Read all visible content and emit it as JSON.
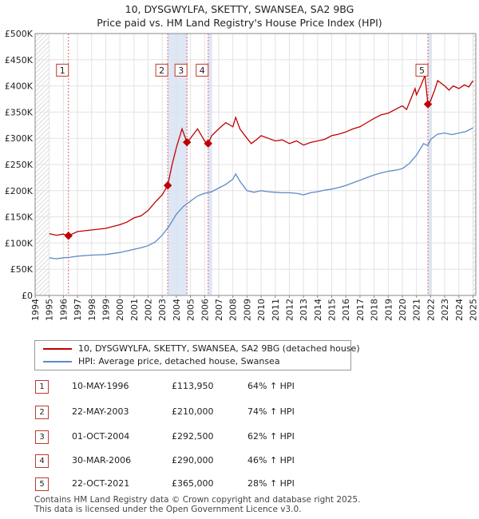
{
  "header": {
    "title_line1": "10, DYSGWYLFA, SKETTY, SWANSEA, SA2 9BG",
    "title_line2": "Price paid vs. HM Land Registry's House Price Index (HPI)"
  },
  "colors": {
    "red": "#c00000",
    "blue": "#5b8ac6",
    "highlight": "#dde7f5",
    "marker_border": "#c0392b"
  },
  "chart_data": {
    "type": "line",
    "ylim": [
      0,
      500000
    ],
    "xlim": [
      1994.0,
      2025.2
    ],
    "y_ticks": [
      0,
      50000,
      100000,
      150000,
      200000,
      250000,
      300000,
      350000,
      400000,
      450000,
      500000
    ],
    "y_tick_labels": [
      "£0",
      "£50K",
      "£100K",
      "£150K",
      "£200K",
      "£250K",
      "£300K",
      "£350K",
      "£400K",
      "£450K",
      "£500K"
    ],
    "x_ticks": [
      1994,
      1995,
      1996,
      1997,
      1998,
      1999,
      2000,
      2001,
      2002,
      2003,
      2004,
      2005,
      2006,
      2007,
      2008,
      2009,
      2010,
      2011,
      2012,
      2013,
      2014,
      2015,
      2016,
      2017,
      2018,
      2019,
      2020,
      2021,
      2022,
      2023,
      2024,
      2025
    ],
    "x_tick_labels": [
      "1994",
      "1995",
      "1996",
      "1997",
      "1998",
      "1999",
      "2000",
      "2001",
      "2002",
      "2003",
      "2004",
      "2005",
      "2006",
      "2007",
      "2008",
      "2009",
      "2010",
      "2011",
      "2012",
      "2013",
      "2014",
      "2015",
      "2016",
      "2017",
      "2018",
      "2019",
      "2020",
      "2021",
      "2022",
      "2023",
      "2024",
      "2025"
    ],
    "hatched_ranges": [
      [
        1994.0,
        1995.0
      ],
      [
        2025.0,
        2025.2
      ]
    ],
    "series": [
      {
        "name": "10, DYSGWYLFA, SKETTY, SWANSEA, SA2 9BG (detached house)",
        "color": "#c00000",
        "points": [
          [
            1995.0,
            118000
          ],
          [
            1995.5,
            115000
          ],
          [
            1996.0,
            117000
          ],
          [
            1996.36,
            113950
          ],
          [
            1997.0,
            122000
          ],
          [
            1998.0,
            125000
          ],
          [
            1999.0,
            128000
          ],
          [
            2000.0,
            135000
          ],
          [
            2000.5,
            140000
          ],
          [
            2001.0,
            148000
          ],
          [
            2001.5,
            152000
          ],
          [
            2002.0,
            162000
          ],
          [
            2002.5,
            178000
          ],
          [
            2003.0,
            192000
          ],
          [
            2003.39,
            210000
          ],
          [
            2003.7,
            250000
          ],
          [
            2004.0,
            282000
          ],
          [
            2004.4,
            318000
          ],
          [
            2004.75,
            292500
          ],
          [
            2005.0,
            300000
          ],
          [
            2005.5,
            318000
          ],
          [
            2006.0,
            295000
          ],
          [
            2006.25,
            290000
          ],
          [
            2006.5,
            305000
          ],
          [
            2007.0,
            318000
          ],
          [
            2007.5,
            330000
          ],
          [
            2008.0,
            322000
          ],
          [
            2008.2,
            340000
          ],
          [
            2008.5,
            318000
          ],
          [
            2009.0,
            300000
          ],
          [
            2009.3,
            290000
          ],
          [
            2009.7,
            298000
          ],
          [
            2010.0,
            305000
          ],
          [
            2010.5,
            300000
          ],
          [
            2011.0,
            295000
          ],
          [
            2011.5,
            297000
          ],
          [
            2012.0,
            290000
          ],
          [
            2012.5,
            295000
          ],
          [
            2013.0,
            287000
          ],
          [
            2013.5,
            292000
          ],
          [
            2014.0,
            295000
          ],
          [
            2014.5,
            298000
          ],
          [
            2015.0,
            305000
          ],
          [
            2015.5,
            308000
          ],
          [
            2016.0,
            312000
          ],
          [
            2016.5,
            318000
          ],
          [
            2017.0,
            322000
          ],
          [
            2017.5,
            330000
          ],
          [
            2018.0,
            338000
          ],
          [
            2018.5,
            345000
          ],
          [
            2019.0,
            348000
          ],
          [
            2019.5,
            355000
          ],
          [
            2020.0,
            362000
          ],
          [
            2020.3,
            355000
          ],
          [
            2020.6,
            375000
          ],
          [
            2020.9,
            395000
          ],
          [
            2021.0,
            383000
          ],
          [
            2021.3,
            400000
          ],
          [
            2021.6,
            420000
          ],
          [
            2021.81,
            365000
          ],
          [
            2022.0,
            372000
          ],
          [
            2022.3,
            393000
          ],
          [
            2022.5,
            410000
          ],
          [
            2023.0,
            400000
          ],
          [
            2023.3,
            392000
          ],
          [
            2023.6,
            400000
          ],
          [
            2024.0,
            395000
          ],
          [
            2024.4,
            402000
          ],
          [
            2024.7,
            398000
          ],
          [
            2025.0,
            410000
          ]
        ]
      },
      {
        "name": "HPI: Average price, detached house, Swansea",
        "color": "#5b8ac6",
        "points": [
          [
            1995.0,
            72000
          ],
          [
            1995.5,
            70000
          ],
          [
            1996.0,
            72000
          ],
          [
            1996.5,
            73000
          ],
          [
            1997.0,
            75000
          ],
          [
            1998.0,
            77000
          ],
          [
            1999.0,
            78000
          ],
          [
            2000.0,
            82000
          ],
          [
            2000.5,
            85000
          ],
          [
            2001.0,
            88000
          ],
          [
            2001.5,
            91000
          ],
          [
            2002.0,
            95000
          ],
          [
            2002.5,
            102000
          ],
          [
            2003.0,
            115000
          ],
          [
            2003.5,
            133000
          ],
          [
            2004.0,
            155000
          ],
          [
            2004.5,
            170000
          ],
          [
            2005.0,
            180000
          ],
          [
            2005.5,
            190000
          ],
          [
            2006.0,
            195000
          ],
          [
            2006.5,
            198000
          ],
          [
            2007.0,
            205000
          ],
          [
            2007.5,
            212000
          ],
          [
            2008.0,
            222000
          ],
          [
            2008.2,
            232000
          ],
          [
            2008.5,
            218000
          ],
          [
            2009.0,
            200000
          ],
          [
            2009.5,
            197000
          ],
          [
            2010.0,
            200000
          ],
          [
            2010.5,
            198000
          ],
          [
            2011.0,
            197000
          ],
          [
            2011.5,
            196000
          ],
          [
            2012.0,
            196000
          ],
          [
            2012.5,
            195000
          ],
          [
            2013.0,
            192000
          ],
          [
            2013.5,
            196000
          ],
          [
            2014.0,
            198000
          ],
          [
            2014.5,
            201000
          ],
          [
            2015.0,
            203000
          ],
          [
            2015.5,
            206000
          ],
          [
            2016.0,
            210000
          ],
          [
            2016.5,
            215000
          ],
          [
            2017.0,
            220000
          ],
          [
            2017.5,
            225000
          ],
          [
            2018.0,
            230000
          ],
          [
            2018.5,
            234000
          ],
          [
            2019.0,
            237000
          ],
          [
            2019.5,
            239000
          ],
          [
            2020.0,
            242000
          ],
          [
            2020.5,
            252000
          ],
          [
            2021.0,
            268000
          ],
          [
            2021.5,
            290000
          ],
          [
            2021.81,
            286000
          ],
          [
            2022.0,
            298000
          ],
          [
            2022.5,
            308000
          ],
          [
            2023.0,
            310000
          ],
          [
            2023.5,
            307000
          ],
          [
            2024.0,
            310000
          ],
          [
            2024.5,
            313000
          ],
          [
            2025.0,
            320000
          ]
        ]
      }
    ],
    "sales": [
      {
        "label": "1",
        "date": "10-MAY-1996",
        "x": 1996.36,
        "price": 113950,
        "price_text": "£113,950",
        "hpi": "64% ↑ HPI"
      },
      {
        "label": "2",
        "date": "22-MAY-2003",
        "x": 2003.39,
        "price": 210000,
        "price_text": "£210,000",
        "hpi": "74% ↑ HPI"
      },
      {
        "label": "3",
        "date": "01-OCT-2004",
        "x": 2004.75,
        "price": 292500,
        "price_text": "£292,500",
        "hpi": "62% ↑ HPI"
      },
      {
        "label": "4",
        "date": "30-MAR-2006",
        "x": 2006.25,
        "price": 290000,
        "price_text": "£290,000",
        "hpi": "46% ↑ HPI"
      },
      {
        "label": "5",
        "date": "22-OCT-2021",
        "x": 2021.81,
        "price": 365000,
        "price_text": "£365,000",
        "hpi": "28% ↑ HPI"
      }
    ]
  },
  "legend": {
    "red_label": "10, DYSGWYLFA, SKETTY, SWANSEA, SA2 9BG (detached house)",
    "blue_label": "HPI: Average price, detached house, Swansea"
  },
  "footer": {
    "line1": "Contains HM Land Registry data © Crown copyright and database right 2025.",
    "line2": "This data is licensed under the Open Government Licence v3.0."
  }
}
